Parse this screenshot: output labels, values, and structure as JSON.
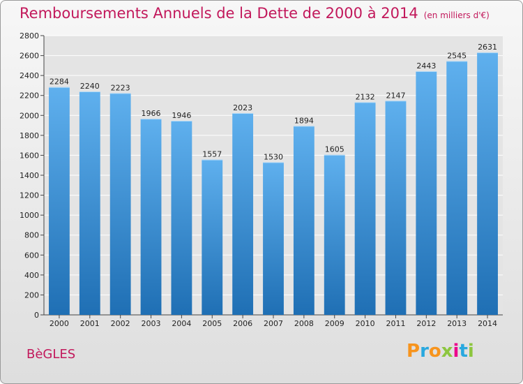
{
  "title": "Remboursements Annuels de la Dette de 2000 à 2014",
  "subtitle": "(en milliers d'€)",
  "commune": "BèGLES",
  "logo": "Proxiti",
  "colors": {
    "title": "#c2185b",
    "bar_top": "#5fb0ee",
    "bar_bottom": "#1f6fb4",
    "grid": "#ffffff"
  },
  "chart_data": {
    "type": "bar",
    "title": "Remboursements Annuels de la Dette de 2000 à 2014",
    "xlabel": "",
    "ylabel": "",
    "categories": [
      "2000",
      "2001",
      "2002",
      "2003",
      "2004",
      "2005",
      "2006",
      "2007",
      "2008",
      "2009",
      "2010",
      "2011",
      "2012",
      "2013",
      "2014"
    ],
    "values": [
      2284,
      2240,
      2223,
      1966,
      1946,
      1557,
      2023,
      1530,
      1894,
      1605,
      2132,
      2147,
      2443,
      2545,
      2631
    ],
    "ylim": [
      0,
      2800
    ],
    "yticks": [
      0,
      200,
      400,
      600,
      800,
      1000,
      1200,
      1400,
      1600,
      1800,
      2000,
      2200,
      2400,
      2600,
      2800
    ],
    "grid": true,
    "legend": "none"
  }
}
